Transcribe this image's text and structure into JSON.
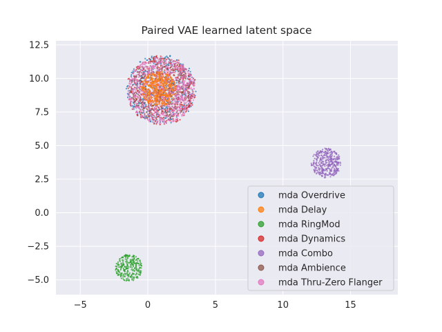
{
  "chart_data": {
    "type": "scatter",
    "title": "Paired VAE learned latent space",
    "xlabel": "",
    "ylabel": "",
    "xlim": [
      -6.8,
      18.5
    ],
    "ylim": [
      -6.1,
      12.8
    ],
    "x_ticks": [
      -5,
      0,
      5,
      10,
      15
    ],
    "y_ticks": [
      -5.0,
      -2.5,
      0.0,
      2.5,
      5.0,
      7.5,
      10.0,
      12.5
    ],
    "x_tick_labels": [
      "−5",
      "0",
      "5",
      "10",
      "15"
    ],
    "y_tick_labels": [
      "−5.0",
      "−2.5",
      "0.0",
      "2.5",
      "5.0",
      "7.5",
      "10.0",
      "12.5"
    ],
    "grid": true,
    "background": "#eaeaf2",
    "legend_position": "lower-right",
    "series": [
      {
        "name": "mda Overdrive",
        "color": "#1f77b4",
        "center": [
          1.0,
          9.2
        ],
        "radius": 2.6
      },
      {
        "name": "mda Delay",
        "color": "#ff7f0e",
        "center": [
          0.8,
          9.2
        ],
        "radius": 1.3
      },
      {
        "name": "mda RingMod",
        "color": "#2ca02c",
        "center": [
          -1.4,
          -4.1
        ],
        "radius": 1.0
      },
      {
        "name": "mda Dynamics",
        "color": "#d62728",
        "center": [
          1.0,
          9.1
        ],
        "radius": 2.6
      },
      {
        "name": "mda Combo",
        "color": "#9467bd",
        "center": [
          13.2,
          3.7
        ],
        "radius": 1.1
      },
      {
        "name": "mda Ambience",
        "color": "#8c564b",
        "center": [
          1.0,
          9.2
        ],
        "radius": 2.3
      },
      {
        "name": "mda Thru-Zero Flanger",
        "color": "#e377c2",
        "center": [
          1.0,
          9.1
        ],
        "radius": 2.5
      }
    ]
  }
}
